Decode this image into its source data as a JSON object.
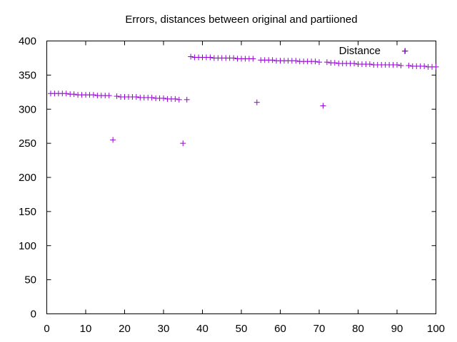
{
  "chart_data": {
    "type": "scatter",
    "title": "Errors, distances between original and partiioned",
    "xlabel": "",
    "ylabel": "",
    "xlim": [
      0,
      100
    ],
    "ylim": [
      0,
      400
    ],
    "xticks": [
      "0",
      "10",
      "20",
      "30",
      "40",
      "50",
      "60",
      "70",
      "80",
      "90",
      "100"
    ],
    "yticks": [
      "0",
      "50",
      "100",
      "150",
      "200",
      "250",
      "300",
      "350",
      "400"
    ],
    "grid": false,
    "legend_position": "top-right",
    "marker": "plus",
    "series": [
      {
        "name": "Distance",
        "color": "#9400d3",
        "x": [
          1,
          2,
          3,
          4,
          5,
          6,
          7,
          8,
          9,
          10,
          11,
          12,
          13,
          14,
          15,
          16,
          17,
          18,
          19,
          20,
          21,
          22,
          23,
          24,
          25,
          26,
          27,
          28,
          29,
          30,
          31,
          32,
          33,
          34,
          35,
          36,
          37,
          38,
          39,
          40,
          41,
          42,
          43,
          44,
          45,
          46,
          47,
          48,
          49,
          50,
          51,
          52,
          53,
          54,
          55,
          56,
          57,
          58,
          59,
          60,
          61,
          62,
          63,
          64,
          65,
          66,
          67,
          68,
          69,
          70,
          71,
          72,
          73,
          74,
          75,
          76,
          77,
          78,
          79,
          80,
          81,
          82,
          83,
          84,
          85,
          86,
          87,
          88,
          89,
          90,
          91,
          92,
          93,
          94,
          95,
          96,
          97,
          98,
          99,
          100
        ],
        "y": [
          323,
          323,
          323,
          323,
          323,
          322,
          322,
          321,
          321,
          321,
          321,
          321,
          320,
          320,
          320,
          320,
          255,
          319,
          318,
          318,
          318,
          318,
          318,
          317,
          317,
          317,
          317,
          316,
          316,
          316,
          315,
          315,
          315,
          314,
          250,
          314,
          377,
          376,
          376,
          376,
          376,
          376,
          375,
          375,
          375,
          375,
          375,
          375,
          374,
          374,
          374,
          374,
          374,
          310,
          372,
          372,
          372,
          372,
          371,
          371,
          371,
          371,
          371,
          371,
          370,
          370,
          370,
          370,
          370,
          369,
          305,
          369,
          368,
          368,
          367,
          367,
          367,
          367,
          367,
          366,
          366,
          366,
          366,
          365,
          365,
          365,
          365,
          365,
          365,
          365,
          364,
          385,
          364,
          363,
          363,
          363,
          363,
          362,
          362,
          362
        ]
      }
    ]
  }
}
